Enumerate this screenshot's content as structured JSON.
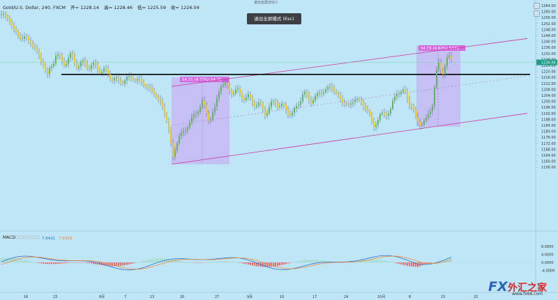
{
  "legend": {
    "symbol": "Gold/U.S. Dollar, 240, FXCM",
    "open": "开= 1228.14",
    "high": "高= 1228.46",
    "low": "低= 1225.59",
    "close": "收= 1226.04"
  },
  "hint": "退出全屏(ESC)",
  "exit_button": "退出全屏模式 (Esc)",
  "price_axis": {
    "labels": [
      "1264.00",
      "1260.00",
      "1256.00",
      "1252.00",
      "1248.00",
      "1244.00",
      "1240.00",
      "1236.00",
      "1232.00",
      "1228.00",
      "1224.00",
      "1220.00",
      "1216.00",
      "1212.00",
      "1208.00",
      "1204.00",
      "1200.00",
      "1196.00",
      "1192.00",
      "1188.00",
      "1184.00",
      "1180.00",
      "1176.00",
      "1172.00",
      "1168.00",
      "1164.00",
      "1160.00",
      "1156.00"
    ],
    "current_price": "1226.04",
    "current_color": "#1e9e86"
  },
  "macd": {
    "label": "MACD",
    "v1": "7.8431",
    "v2": "7.5928",
    "axis_labels": [
      "8.0000",
      "4.0000",
      "0.0000",
      "-4.0000"
    ]
  },
  "time_axis": {
    "labels": [
      "16",
      "23",
      "8月",
      "7",
      "13",
      "20",
      "27",
      "9月",
      "10",
      "17",
      "24",
      "10月",
      "8",
      "15",
      "22"
    ]
  },
  "annotations": {
    "box1": "54.71 (4.77%) 54.71",
    "box2": "54.73 (4.62%) 5473"
  },
  "colors": {
    "up": "#5cb85c",
    "down": "#f0c419",
    "channel": "#cc3399",
    "support": "#000000",
    "box_fill": "#c7b3f2",
    "hist_pos": "#a6dccb",
    "hist_neg": "#ef6b6b",
    "macd_line": "#2a6fc9",
    "signal_line": "#ef8a3c"
  },
  "logo": {
    "brand": "FX",
    "name": "外汇之家",
    "url": "www.fx68.com"
  }
}
